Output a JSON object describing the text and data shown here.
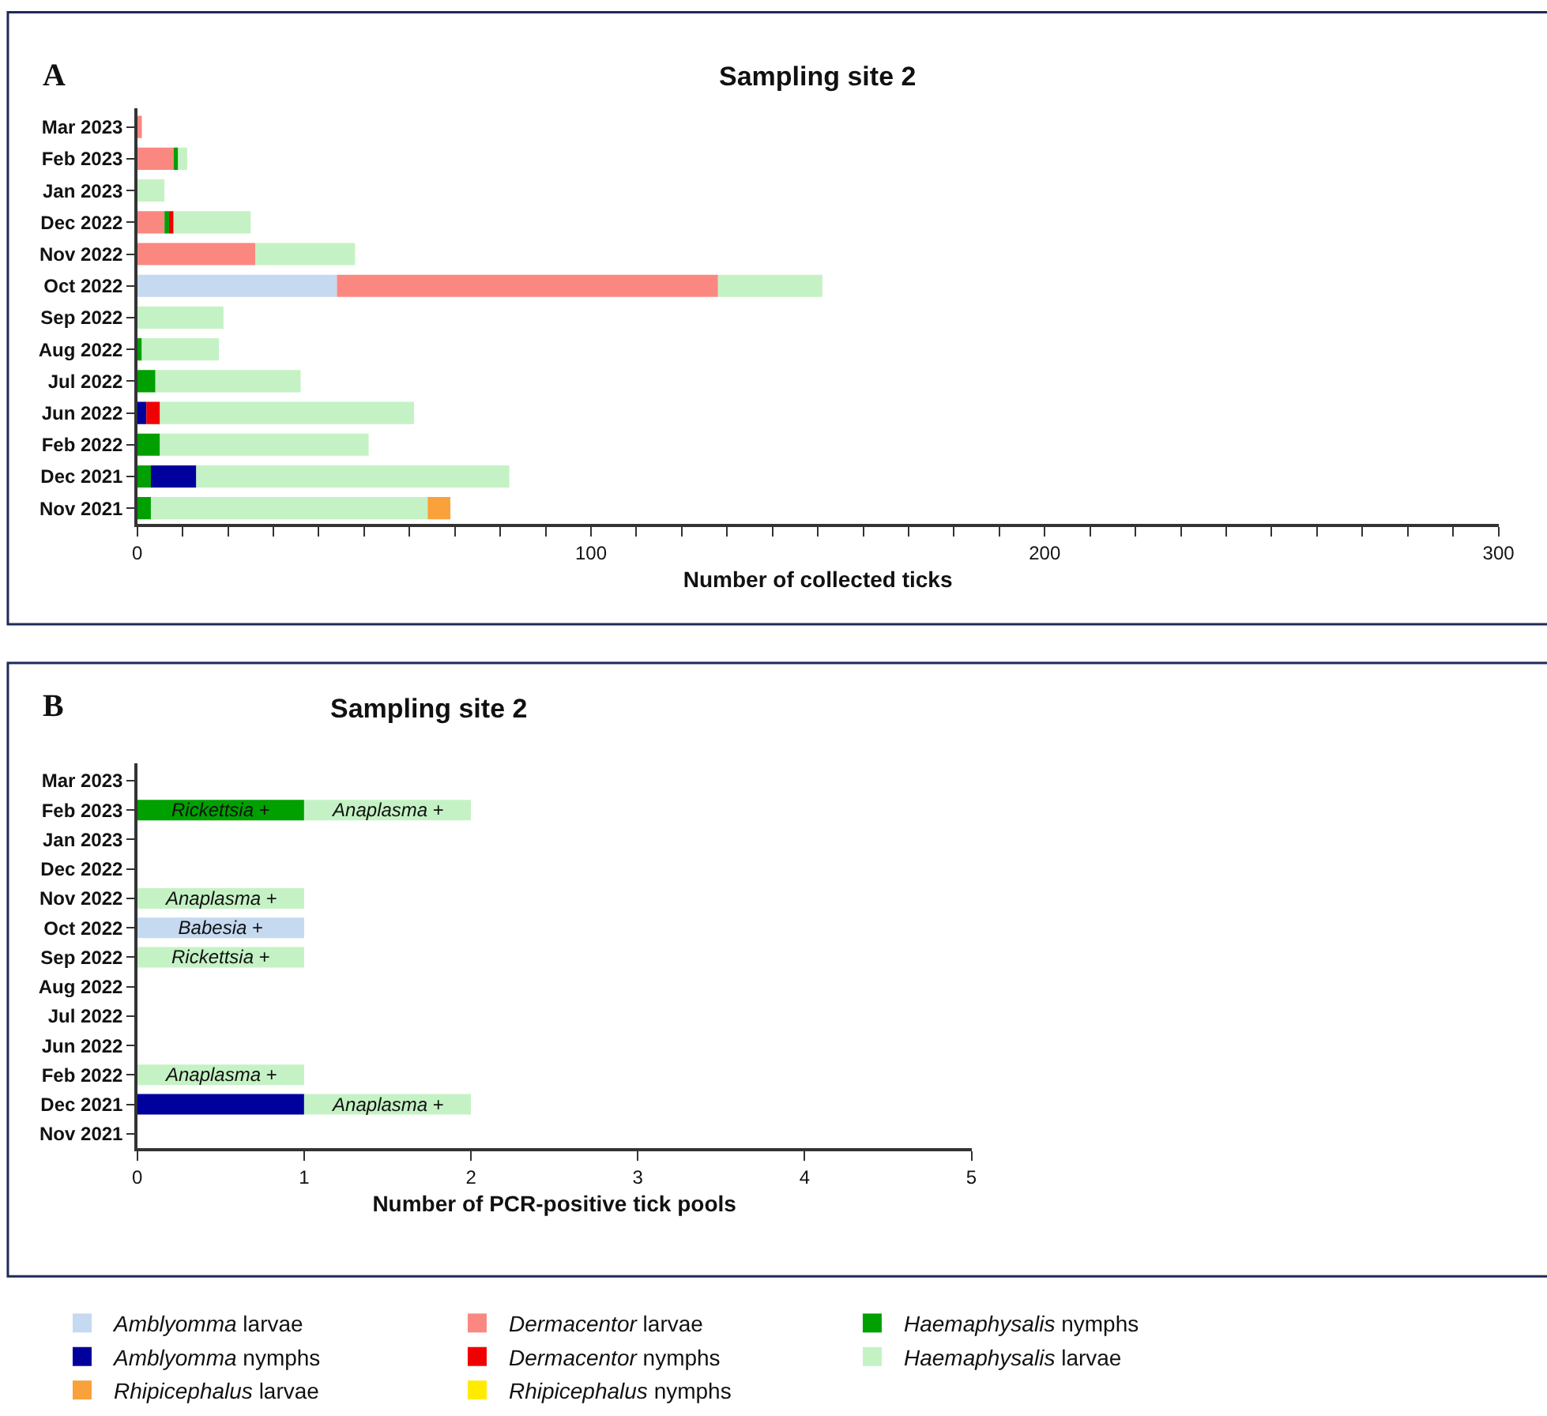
{
  "chart_data": [
    {
      "type": "bar",
      "orientation": "horizontal",
      "stacked": true,
      "title": "Sampling site 2",
      "xlabel": "Number of collected ticks",
      "annotations": [
        "A"
      ],
      "legend": "bottom",
      "categories": [
        "Mar 2023",
        "Feb 2023",
        "Jan 2023",
        "Dec 2022",
        "Nov 2022",
        "Oct 2022",
        "Sep 2022",
        "Aug 2022",
        "Jul 2022",
        "Jun 2022",
        "Feb 2022",
        "Dec 2021",
        "Nov 2021"
      ],
      "xlim": [
        0,
        300
      ],
      "xticks": [
        0,
        {
          "value": 10,
          "label": null
        },
        {
          "value": 20,
          "label": null
        },
        {
          "value": 30,
          "label": null
        },
        {
          "value": 40,
          "label": null
        },
        {
          "value": 50,
          "label": null
        },
        {
          "value": 60,
          "label": null
        },
        {
          "value": 70,
          "label": null
        },
        {
          "value": 80,
          "label": null
        },
        {
          "value": 90,
          "label": null
        },
        100,
        {
          "value": 110,
          "label": null
        },
        {
          "value": 120,
          "label": null
        },
        {
          "value": 130,
          "label": null
        },
        {
          "value": 140,
          "label": null
        },
        {
          "value": 150,
          "label": null
        },
        {
          "value": 160,
          "label": null
        },
        {
          "value": 170,
          "label": null
        },
        {
          "value": 180,
          "label": null
        },
        {
          "value": 190,
          "label": null
        },
        200,
        {
          "value": 210,
          "label": null
        },
        {
          "value": 220,
          "label": null
        },
        {
          "value": 230,
          "label": null
        },
        {
          "value": 240,
          "label": null
        },
        {
          "value": 250,
          "label": null
        },
        {
          "value": 260,
          "label": null
        },
        {
          "value": 270,
          "label": null
        },
        {
          "value": 280,
          "label": null
        },
        {
          "value": 290,
          "label": null
        },
        300
      ],
      "series": [
        {
          "name": "Amblyomma larvae",
          "color": "#c5d9f1",
          "values": [
            0,
            0,
            0,
            0,
            0,
            44,
            0,
            0,
            0,
            0,
            0,
            0,
            0
          ]
        },
        {
          "name": "Dermacentor larvae",
          "color": "#fa8880",
          "values": [
            1,
            8,
            0,
            6,
            26,
            84,
            0,
            0,
            0,
            0,
            0,
            0,
            0
          ]
        },
        {
          "name": "Haemaphysalis nymphs",
          "color": "#00a000",
          "values": [
            0,
            1,
            0,
            1,
            0,
            0,
            0,
            1,
            4,
            0,
            5,
            3,
            3
          ]
        },
        {
          "name": "Amblyomma nymphs",
          "color": "#00009c",
          "values": [
            0,
            0,
            0,
            0,
            0,
            0,
            0,
            0,
            0,
            2,
            0,
            10,
            0
          ]
        },
        {
          "name": "Dermacentor nymphs",
          "color": "#f00000",
          "values": [
            0,
            0,
            0,
            1,
            0,
            0,
            0,
            0,
            0,
            3,
            0,
            0,
            0
          ]
        },
        {
          "name": "Haemaphysalis larvae",
          "color": "#c5f2c5",
          "values": [
            0,
            2,
            6,
            17,
            22,
            23,
            19,
            17,
            32,
            56,
            46,
            69,
            61
          ]
        },
        {
          "name": "Rhipicephalus larvae",
          "color": "#f9a13a",
          "values": [
            0,
            0,
            0,
            0,
            0,
            0,
            0,
            0,
            0,
            0,
            0,
            0,
            5
          ]
        },
        {
          "name": "Rhipicephalus nymphs",
          "color": "#ffeb00",
          "values": [
            0,
            0,
            0,
            0,
            0,
            0,
            0,
            0,
            0,
            0,
            0,
            0,
            0
          ]
        }
      ]
    },
    {
      "type": "bar",
      "orientation": "horizontal",
      "stacked": true,
      "title": "Sampling site 2",
      "xlabel": "Number of PCR-positive tick pools",
      "annotations": [
        "B"
      ],
      "categories": [
        "Mar 2023",
        "Feb 2023",
        "Jan 2023",
        "Dec 2022",
        "Nov 2022",
        "Oct 2022",
        "Sep 2022",
        "Aug 2022",
        "Jul 2022",
        "Jun 2022",
        "Feb 2022",
        "Dec 2021",
        "Nov 2021"
      ],
      "xlim": [
        0,
        5
      ],
      "xticks": [
        0,
        1,
        2,
        3,
        4,
        5
      ],
      "series": [
        {
          "color": "#c5d9f1",
          "values": [
            0,
            0,
            0,
            0,
            0,
            1,
            0,
            0,
            0,
            0,
            0,
            0,
            0
          ],
          "value_labels": [
            null,
            null,
            null,
            null,
            null,
            "Babesia +",
            null,
            null,
            null,
            null,
            null,
            null,
            null
          ]
        },
        {
          "color": "#00a000",
          "values": [
            0,
            1,
            0,
            0,
            0,
            0,
            0,
            0,
            0,
            0,
            0,
            0,
            0
          ],
          "value_labels": [
            null,
            "Rickettsia +",
            null,
            null,
            null,
            null,
            null,
            null,
            null,
            null,
            null,
            null,
            null
          ]
        },
        {
          "color": "#00009c",
          "values": [
            0,
            0,
            0,
            0,
            0,
            0,
            0,
            0,
            0,
            0,
            0,
            1,
            0
          ]
        },
        {
          "color": "#c5f2c5",
          "values": [
            0,
            1,
            0,
            0,
            1,
            0,
            1,
            0,
            0,
            0,
            1,
            1,
            0
          ],
          "value_labels": [
            null,
            "Anaplasma +",
            null,
            null,
            "Anaplasma +",
            null,
            "Rickettsia +",
            null,
            null,
            null,
            "Anaplasma +",
            "Anaplasma +",
            null
          ]
        }
      ]
    }
  ]
}
